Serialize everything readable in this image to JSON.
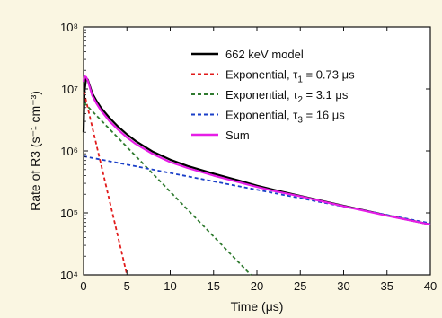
{
  "chart_data": {
    "type": "line",
    "xlabel": "Time (μs)",
    "ylabel": "Rate of R3 (s⁻¹ cm⁻³)",
    "xlim": [
      0,
      40
    ],
    "ylim": [
      10000,
      100000000
    ],
    "yscale": "log",
    "x_ticks": [
      0,
      5,
      10,
      15,
      20,
      25,
      30,
      35,
      40
    ],
    "y_tick_labels": [
      "10⁴",
      "10⁵",
      "10⁶",
      "10⁷",
      "10⁸"
    ],
    "legend_position": "top-right",
    "grid": false,
    "series": [
      {
        "name": "662 keV model",
        "color": "#000000",
        "style": "solid",
        "x": [
          0,
          0.1,
          0.3,
          0.5,
          1,
          1.5,
          2,
          3,
          4,
          5,
          6,
          8,
          10,
          12,
          15,
          18,
          20,
          22,
          25,
          30,
          35,
          40
        ],
        "y": [
          2000000,
          9000000,
          15000000,
          14000000,
          8500000,
          6400000,
          5000000,
          3400000,
          2450000,
          1850000,
          1450000,
          970000,
          720000,
          570000,
          430000,
          330000,
          275000,
          235000,
          188000,
          130000,
          91000,
          65000
        ]
      },
      {
        "name": "Exponential, τ1 = 0.73 μs",
        "color": "#e11b1b",
        "style": "dashed",
        "x": [
          0.05,
          5.0
        ],
        "y": [
          9000000,
          10000
        ]
      },
      {
        "name": "Exponential, τ2 = 3.1 μs",
        "color": "#2f7a2f",
        "style": "dashed",
        "x": [
          0.05,
          19.3
        ],
        "y": [
          6000000,
          10000
        ]
      },
      {
        "name": "Exponential, τ3 = 16 μs",
        "color": "#1a3fc8",
        "style": "dashed",
        "x": [
          0,
          40
        ],
        "y": [
          820000,
          68000
        ]
      },
      {
        "name": "Sum",
        "color": "#e61ee6",
        "style": "solid",
        "x": [
          0,
          0.1,
          0.3,
          0.5,
          1,
          1.5,
          2,
          3,
          4,
          5,
          6,
          8,
          10,
          12,
          15,
          18,
          20,
          22,
          25,
          30,
          35,
          40
        ],
        "y": [
          13000000,
          16000000,
          15500000,
          13500000,
          7800000,
          5800000,
          4500000,
          3000000,
          2200000,
          1650000,
          1300000,
          890000,
          660000,
          530000,
          400000,
          310000,
          262000,
          225000,
          185000,
          128000,
          90000,
          65000
        ]
      }
    ],
    "legend": [
      {
        "label": "662 keV model",
        "sub": "",
        "tail": ""
      },
      {
        "label": "Exponential, τ",
        "sub": "1",
        "tail": " = 0.73 μs"
      },
      {
        "label": "Exponential, τ",
        "sub": "2",
        "tail": " = 3.1 μs"
      },
      {
        "label": "Exponential, τ",
        "sub": "3",
        "tail": " = 16 μs"
      },
      {
        "label": "Sum",
        "sub": "",
        "tail": ""
      }
    ]
  }
}
